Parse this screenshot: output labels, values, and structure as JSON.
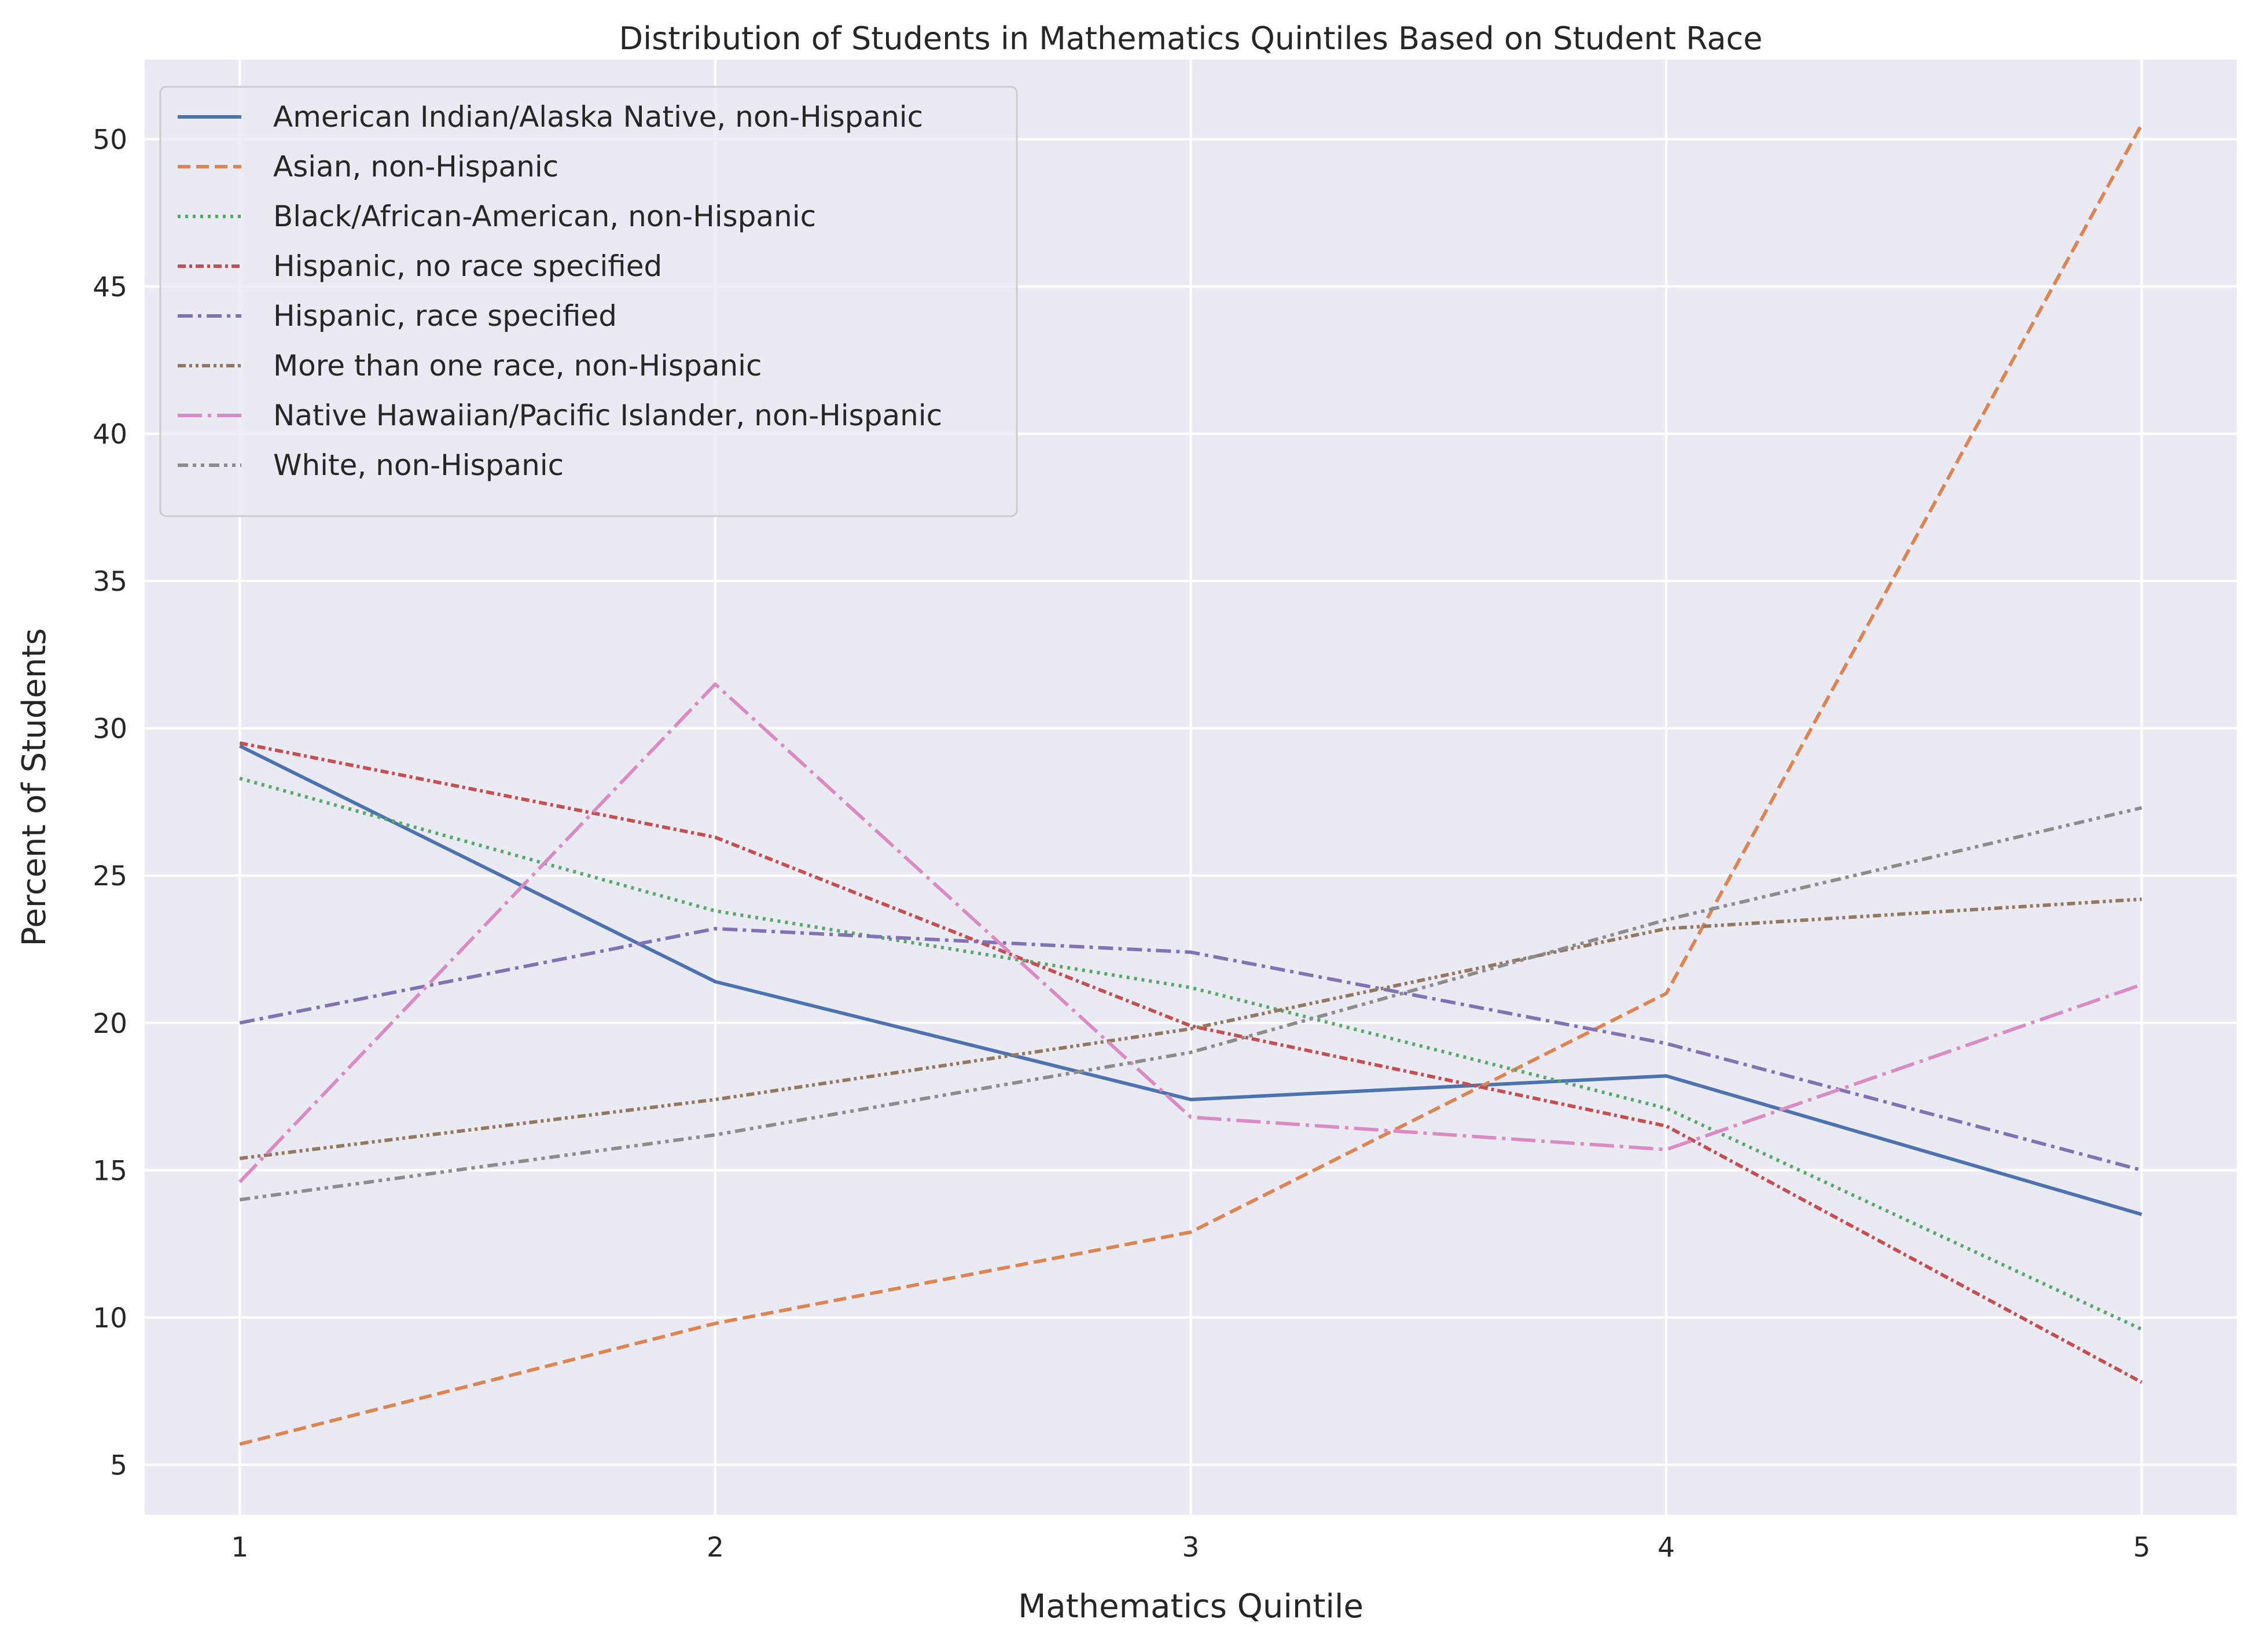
{
  "chart_data": {
    "type": "line",
    "title": "Distribution of Students in Mathematics Quintiles Based on Student Race",
    "xlabel": "Mathematics Quintile",
    "ylabel": "Percent of Students",
    "x": [
      1,
      2,
      3,
      4,
      5
    ],
    "x_ticks": [
      "1",
      "2",
      "3",
      "4",
      "5"
    ],
    "y_ticks": [
      "5",
      "10",
      "15",
      "20",
      "25",
      "30",
      "35",
      "40",
      "45",
      "50"
    ],
    "xlim": [
      0.8,
      5.2
    ],
    "ylim": [
      3.3,
      52.7
    ],
    "grid": true,
    "legend_position": "top-left",
    "series": [
      {
        "name": "American Indian/Alaska Native, non-Hispanic",
        "values": [
          29.4,
          21.4,
          17.4,
          18.2,
          13.5
        ],
        "color": "#4c72b0",
        "dash": "solid"
      },
      {
        "name": "Asian, non-Hispanic",
        "values": [
          5.7,
          9.8,
          12.9,
          21.0,
          50.5
        ],
        "color": "#dd8452",
        "dash": "dashed"
      },
      {
        "name": "Black/African-American, non-Hispanic",
        "values": [
          28.3,
          23.8,
          21.2,
          17.1,
          9.6
        ],
        "color": "#55a868",
        "dash": "dotted"
      },
      {
        "name": "Hispanic, no race specified",
        "values": [
          29.5,
          26.3,
          19.9,
          16.5,
          7.8
        ],
        "color": "#c44e52",
        "dash": "dashdot-tight"
      },
      {
        "name": "Hispanic, race specified",
        "values": [
          20.0,
          23.2,
          22.4,
          19.3,
          15.0
        ],
        "color": "#8172b3",
        "dash": "dashdot"
      },
      {
        "name": "More than one race, non-Hispanic",
        "values": [
          15.4,
          17.4,
          19.8,
          23.2,
          24.2
        ],
        "color": "#937860",
        "dash": "dashdotdot"
      },
      {
        "name": "Native Hawaiian/Pacific Islander, non-Hispanic",
        "values": [
          14.6,
          31.5,
          16.8,
          15.7,
          21.3
        ],
        "color": "#da8bc3",
        "dash": "longdash-dot"
      },
      {
        "name": "White, non-Hispanic",
        "values": [
          14.0,
          16.2,
          19.0,
          23.5,
          27.3
        ],
        "color": "#8c8c8c",
        "dash": "dash-dot-dot"
      }
    ]
  }
}
